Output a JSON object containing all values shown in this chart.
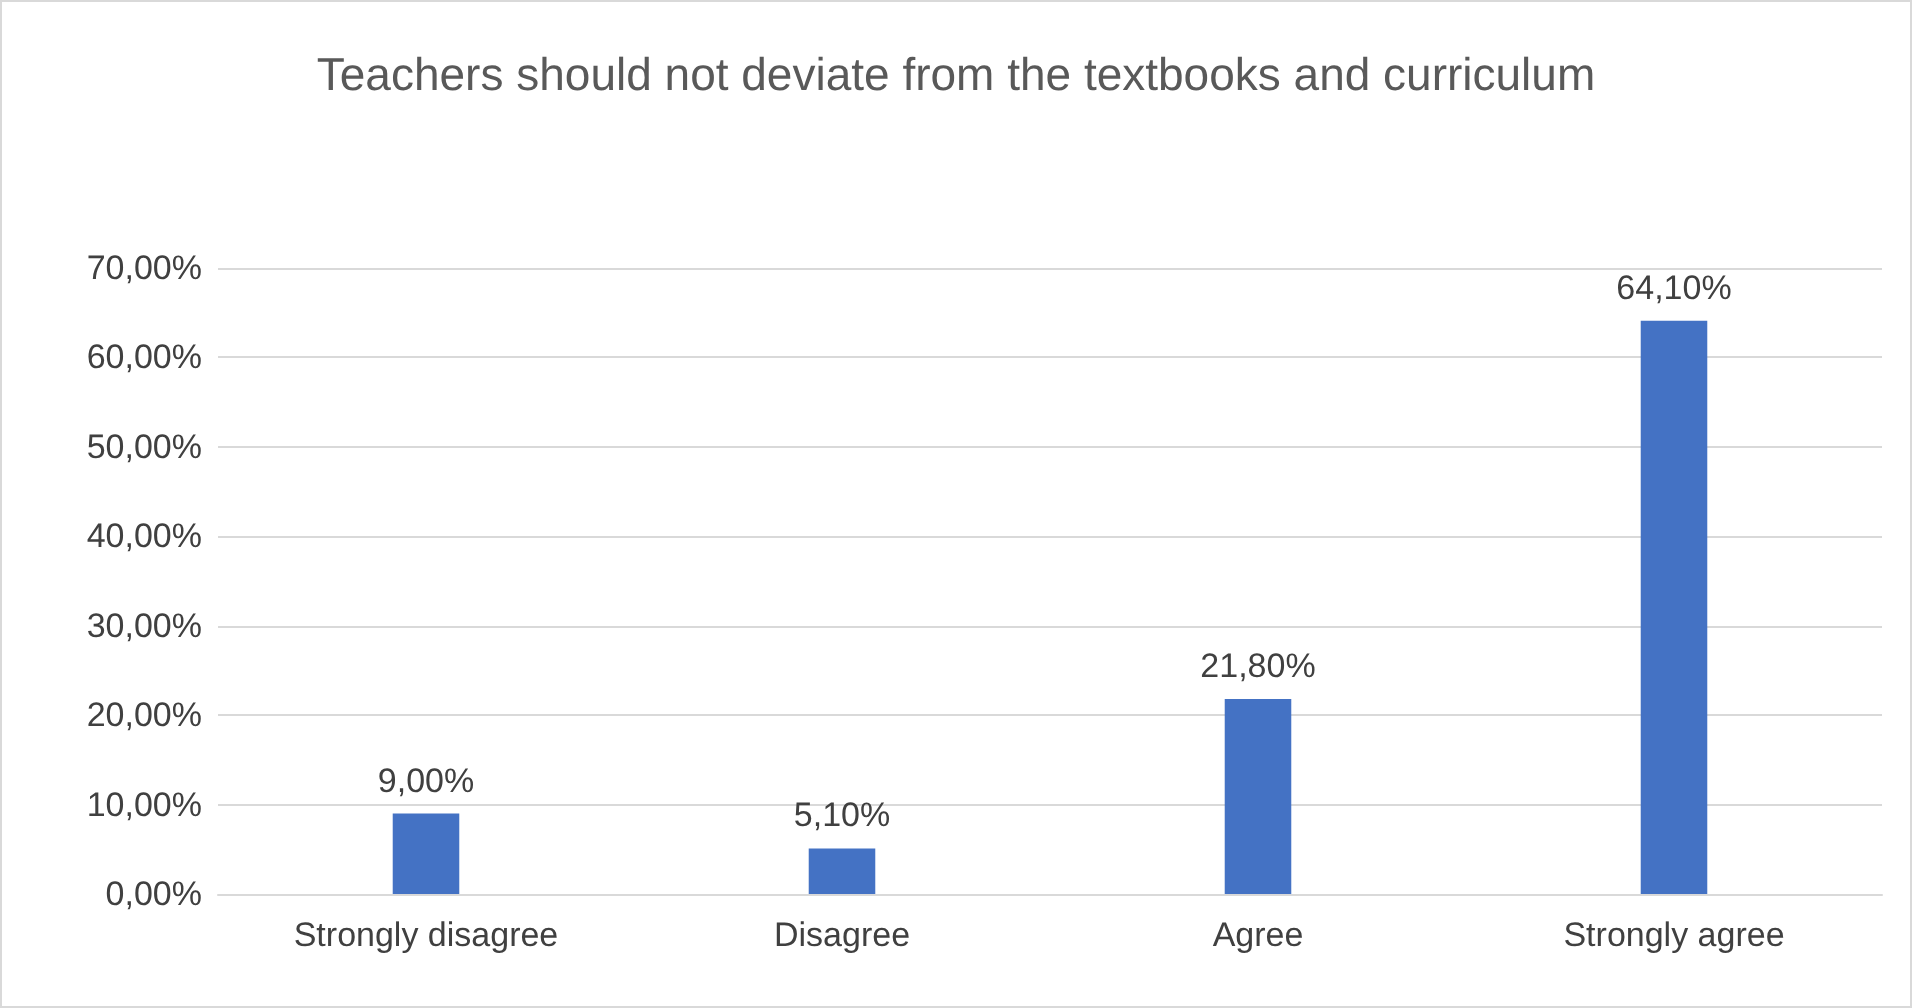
{
  "chart_data": {
    "type": "bar",
    "title": "Teachers should not deviate from the textbooks and curriculum",
    "categories": [
      "Strongly disagree",
      "Disagree",
      "Agree",
      "Strongly agree"
    ],
    "values": [
      9.0,
      5.1,
      21.8,
      64.1
    ],
    "color": "#4472c4",
    "value_labels": [
      "9,00%",
      "5,10%",
      "21,80%",
      "64,10%"
    ],
    "ylim": [
      0,
      70
    ],
    "yticks": [
      {
        "value": 0,
        "label": "0,00%"
      },
      {
        "value": 10,
        "label": "10,00%"
      },
      {
        "value": 20,
        "label": "20,00%"
      },
      {
        "value": 30,
        "label": "30,00%"
      },
      {
        "value": 40,
        "label": "40,00%"
      },
      {
        "value": 50,
        "label": "50,00%"
      },
      {
        "value": 60,
        "label": "60,00%"
      },
      {
        "value": 70,
        "label": "70,00%"
      }
    ],
    "grid": "y"
  }
}
